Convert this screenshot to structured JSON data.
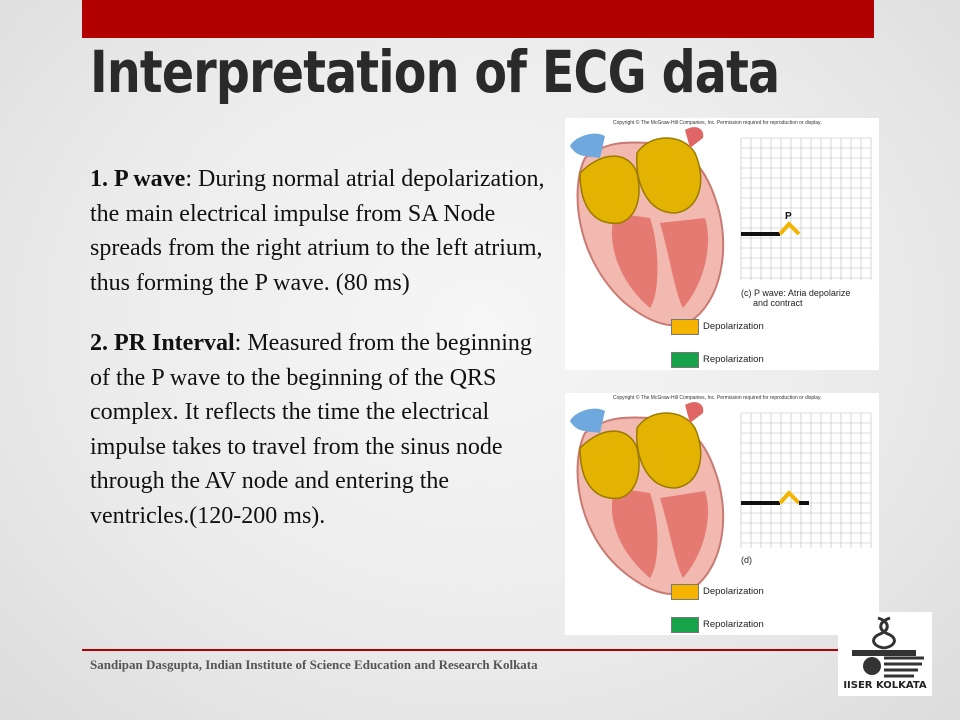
{
  "slide": {
    "title": "Interpretation of ECG data",
    "p_wave": {
      "number": "1.",
      "term": "P wave",
      "text": ": During normal atrial depolarization, the main electrical impulse from SA Node spreads from the right atrium to the left atrium, thus forming the P wave. (80 ms)"
    },
    "pr_interval": {
      "number": "2.",
      "term": "PR Interval",
      "text": ": Measured from the beginning of the P wave to the beginning of the QRS complex. It reflects the time the electrical impulse takes to travel from the sinus node through the AV node and entering the ventricles.(120-200 ms)."
    },
    "footer": "Sandipan Dasgupta, Indian Institute of Science Education and Research Kolkata"
  },
  "figures": [
    {
      "copyright": "Copyright © The McGraw-Hill Companies, Inc. Permission required for reproduction or display.",
      "wave_label": "P",
      "caption_line1": "(c) P wave: Atria depolarize",
      "caption_line2": "and contract",
      "legend": [
        {
          "label": "Depolarization",
          "color": "#f5b400"
        },
        {
          "label": "Repolarization",
          "color": "#16a34a"
        }
      ]
    },
    {
      "copyright": "Copyright © The McGraw-Hill Companies, Inc. Permission required for reproduction or display.",
      "caption_line1": "(d)",
      "legend": [
        {
          "label": "Depolarization",
          "color": "#f5b400"
        },
        {
          "label": "Repolarization",
          "color": "#16a34a"
        }
      ]
    }
  ],
  "logo": {
    "text": "IISER KOLKATA"
  },
  "colors": {
    "accent": "#b00000",
    "title": "#2a2a2a",
    "depolarization": "#f5b400",
    "repolarization": "#16a34a"
  }
}
